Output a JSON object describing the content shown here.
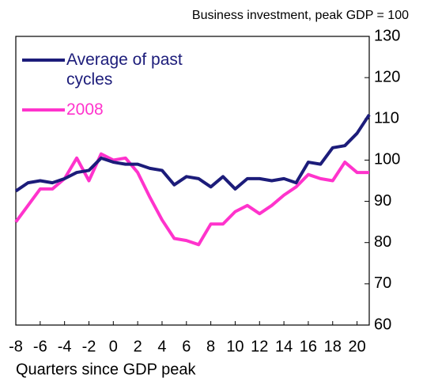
{
  "chart_data": {
    "type": "line",
    "subtitle": "Business investment, peak GDP = 100",
    "x_label": "Quarters since GDP peak",
    "x": [
      -8,
      -7,
      -6,
      -5,
      -4,
      -3,
      -2,
      -1,
      0,
      1,
      2,
      3,
      4,
      5,
      6,
      7,
      8,
      9,
      10,
      11,
      12,
      13,
      14,
      15,
      16,
      17,
      18,
      19,
      20,
      21
    ],
    "series": [
      {
        "name": "Average of past cycles",
        "color": "#1c1c7a",
        "values": [
          92.5,
          94.5,
          95,
          94.5,
          95.5,
          97,
          97.5,
          100.5,
          99.5,
          99,
          99,
          98,
          97.5,
          94,
          96,
          95.5,
          93.5,
          96,
          93,
          95.5,
          95.5,
          95,
          95.5,
          94.5,
          99.5,
          99,
          103,
          103.5,
          106.5,
          111
        ]
      },
      {
        "name": "2008",
        "color": "#ff33cc",
        "values": [
          85,
          89,
          93,
          93,
          95.5,
          100.5,
          95,
          101.5,
          100,
          100.5,
          97,
          91,
          85.5,
          81,
          80.5,
          79.5,
          84.5,
          84.5,
          87.5,
          89,
          87,
          89,
          91.5,
          93.5,
          96.5,
          95.5,
          95,
          99.5,
          97,
          97
        ]
      }
    ],
    "xlim": [
      -8,
      21
    ],
    "xticks": [
      -8,
      -6,
      -4,
      -2,
      0,
      2,
      4,
      6,
      8,
      10,
      12,
      14,
      16,
      18,
      20
    ],
    "ylim": [
      60,
      130
    ],
    "yticks": [
      60,
      70,
      80,
      90,
      100,
      110,
      120,
      130
    ],
    "y_axis_side": "right"
  }
}
